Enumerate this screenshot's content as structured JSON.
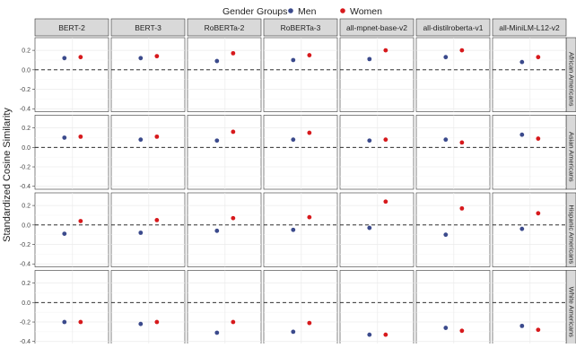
{
  "chart_data": {
    "type": "scatter",
    "ylabel": "Standardized Cosine Similarity",
    "legend": {
      "title": "Gender Groups",
      "placement": "top-center",
      "entries": [
        {
          "name": "Men",
          "color": "#3b4a8c"
        },
        {
          "name": "Women",
          "color": "#d7191c"
        }
      ]
    },
    "columns": [
      "BERT-2",
      "BERT-3",
      "RoBERTa-2",
      "RoBERTa-3",
      "all-mpnet-base-v2",
      "all-distilroberta-v1",
      "all-MiniLM-L12-v2"
    ],
    "rows": [
      "African Americans",
      "Asian Americans",
      "Hispanic Americans",
      "White Americans"
    ],
    "ylim": [
      -0.43,
      0.33
    ],
    "yticks": [
      -0.4,
      -0.2,
      0.0,
      0.2
    ],
    "ytick_labels": [
      "-0.4",
      "-0.2",
      "0.0",
      "0.2"
    ],
    "reference_line": 0.0,
    "grid": true,
    "series": [
      {
        "name": "Men",
        "values": [
          [
            0.12,
            0.12,
            0.09,
            0.1,
            0.11,
            0.13,
            0.08
          ],
          [
            0.1,
            0.08,
            0.07,
            0.08,
            0.07,
            0.08,
            0.13
          ],
          [
            -0.09,
            -0.08,
            -0.06,
            -0.05,
            -0.03,
            -0.1,
            -0.04
          ],
          [
            -0.2,
            -0.22,
            -0.31,
            -0.3,
            -0.33,
            -0.26,
            -0.24
          ]
        ]
      },
      {
        "name": "Women",
        "values": [
          [
            0.13,
            0.14,
            0.17,
            0.15,
            0.2,
            0.2,
            0.13
          ],
          [
            0.11,
            0.11,
            0.16,
            0.15,
            0.08,
            0.05,
            0.09
          ],
          [
            0.04,
            0.05,
            0.07,
            0.08,
            0.24,
            0.17,
            0.12
          ],
          [
            -0.2,
            -0.2,
            -0.2,
            -0.21,
            -0.33,
            -0.29,
            -0.28
          ]
        ]
      }
    ]
  }
}
